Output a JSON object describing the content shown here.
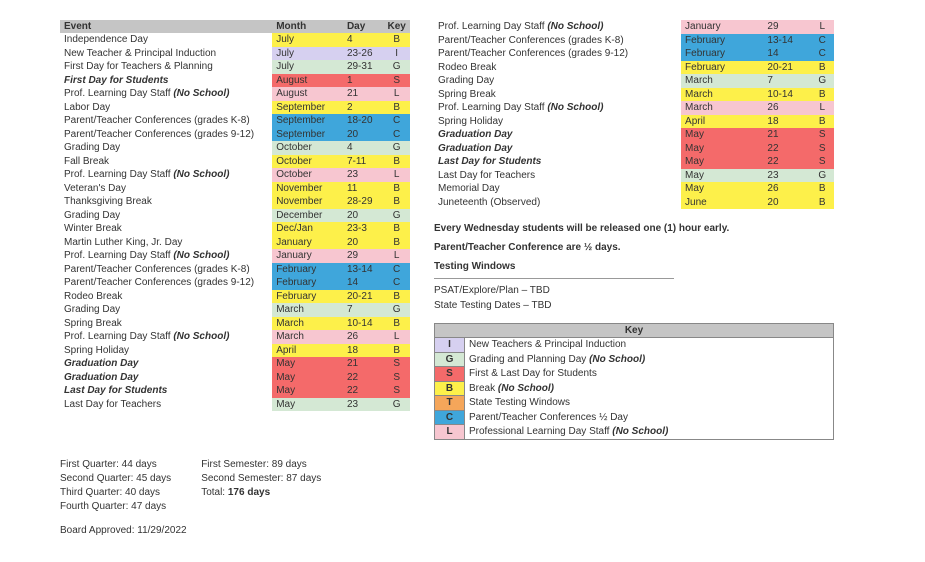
{
  "colors": {
    "headerBg": "#c5c5c5",
    "B": "#fdf04a",
    "I": "#d6d0f0",
    "G": "#d4e8d4",
    "S": "#f46a6a",
    "L": "#f7c6d0",
    "C": "#3fa6db",
    "T": "#f5a65a",
    "none": "transparent"
  },
  "headers": {
    "event": "Event",
    "month": "Month",
    "day": "Day",
    "key": "Key"
  },
  "events": [
    {
      "e": "Independence Day",
      "m": "July",
      "d": "4",
      "k": "B",
      "c": "B"
    },
    {
      "e": "New Teacher & Principal Induction",
      "m": "July",
      "d": "23-26",
      "k": "I",
      "c": "I"
    },
    {
      "e": "First Day for Teachers & Planning",
      "m": "July",
      "d": "29-31",
      "k": "G",
      "c": "G"
    },
    {
      "e": "First Day for Students",
      "m": "August",
      "d": "1",
      "k": "S",
      "c": "S",
      "bi": true
    },
    {
      "e": "Prof. Learning Day Staff <b><i>(No School)</i></b>",
      "m": "August",
      "d": "21",
      "k": "L",
      "c": "L"
    },
    {
      "e": "Labor Day",
      "m": "September",
      "d": "2",
      "k": "B",
      "c": "B"
    },
    {
      "e": "Parent/Teacher Conferences (grades K-8)",
      "m": "September",
      "d": "18-20",
      "k": "C",
      "c": "C"
    },
    {
      "e": "Parent/Teacher Conferences (grades 9-12)",
      "m": "September",
      "d": "20",
      "k": "C",
      "c": "C"
    },
    {
      "e": "Grading Day",
      "m": "October",
      "d": "4",
      "k": "G",
      "c": "G"
    },
    {
      "e": "Fall Break",
      "m": "October",
      "d": "7-11",
      "k": "B",
      "c": "B"
    },
    {
      "e": "Prof. Learning Day Staff <b><i>(No School)</i></b>",
      "m": "October",
      "d": "23",
      "k": "L",
      "c": "L"
    },
    {
      "e": "Veteran's Day",
      "m": "November",
      "d": "11",
      "k": "B",
      "c": "B"
    },
    {
      "e": "Thanksgiving Break",
      "m": "November",
      "d": "28-29",
      "k": "B",
      "c": "B"
    },
    {
      "e": "Grading Day",
      "m": "December",
      "d": "20",
      "k": "G",
      "c": "G"
    },
    {
      "e": "Winter Break",
      "m": "Dec/Jan",
      "d": "23-3",
      "k": "B",
      "c": "B"
    },
    {
      "e": "Martin Luther King, Jr. Day",
      "m": "January",
      "d": "20",
      "k": "B",
      "c": "B"
    },
    {
      "e": "Prof. Learning Day Staff <b><i>(No School)</i></b>",
      "m": "January",
      "d": "29",
      "k": "L",
      "c": "L"
    },
    {
      "e": "Parent/Teacher Conferences (grades K-8)",
      "m": "February",
      "d": "13-14",
      "k": "C",
      "c": "C"
    },
    {
      "e": "Parent/Teacher Conferences (grades 9-12)",
      "m": "February",
      "d": "14",
      "k": "C",
      "c": "C"
    },
    {
      "e": "Rodeo Break",
      "m": "February",
      "d": "20-21",
      "k": "B",
      "c": "B"
    },
    {
      "e": "Grading Day",
      "m": "March",
      "d": "7",
      "k": "G",
      "c": "G"
    },
    {
      "e": "Spring Break",
      "m": "March",
      "d": "10-14",
      "k": "B",
      "c": "B"
    },
    {
      "e": "Prof. Learning Day Staff <b><i>(No School)</i></b>",
      "m": "March",
      "d": "26",
      "k": "L",
      "c": "L"
    },
    {
      "e": "Spring Holiday",
      "m": "April",
      "d": "18",
      "k": "B",
      "c": "B"
    },
    {
      "e": "Graduation Day",
      "m": "May",
      "d": "21",
      "k": "S",
      "c": "S",
      "bi": true
    },
    {
      "e": "Graduation Day",
      "m": "May",
      "d": "22",
      "k": "S",
      "c": "S",
      "bi": true
    },
    {
      "e": "Last Day for Students",
      "m": "May",
      "d": "22",
      "k": "S",
      "c": "S",
      "bi": true
    },
    {
      "e": "Last Day for Teachers",
      "m": "May",
      "d": "23",
      "k": "G",
      "c": "G"
    }
  ],
  "eventsRight": [
    {
      "e": "Prof. Learning Day Staff <b><i>(No School)</i></b>",
      "m": "January",
      "d": "29",
      "k": "L",
      "c": "L"
    },
    {
      "e": "Parent/Teacher Conferences (grades K-8)",
      "m": "February",
      "d": "13-14",
      "k": "C",
      "c": "C"
    },
    {
      "e": "Parent/Teacher Conferences (grades 9-12)",
      "m": "February",
      "d": "14",
      "k": "C",
      "c": "C"
    },
    {
      "e": "Rodeo Break",
      "m": "February",
      "d": "20-21",
      "k": "B",
      "c": "B"
    },
    {
      "e": "Grading Day",
      "m": "March",
      "d": "7",
      "k": "G",
      "c": "G"
    },
    {
      "e": "Spring Break",
      "m": "March",
      "d": "10-14",
      "k": "B",
      "c": "B"
    },
    {
      "e": "Prof. Learning Day Staff <b><i>(No School)</i></b>",
      "m": "March",
      "d": "26",
      "k": "L",
      "c": "L"
    },
    {
      "e": "Spring Holiday",
      "m": "April",
      "d": "18",
      "k": "B",
      "c": "B"
    },
    {
      "e": "Graduation Day",
      "m": "May",
      "d": "21",
      "k": "S",
      "c": "S",
      "bi": true
    },
    {
      "e": "Graduation Day",
      "m": "May",
      "d": "22",
      "k": "S",
      "c": "S",
      "bi": true
    },
    {
      "e": "Last Day for Students",
      "m": "May",
      "d": "22",
      "k": "S",
      "c": "S",
      "bi": true
    },
    {
      "e": "Last Day for Teachers",
      "m": "May",
      "d": "23",
      "k": "G",
      "c": "G"
    },
    {
      "e": "Memorial Day",
      "m": "May",
      "d": "26",
      "k": "B",
      "c": "B"
    },
    {
      "e": "Juneteenth (Observed)",
      "m": "June",
      "d": "20",
      "k": "B",
      "c": "B"
    }
  ],
  "notes": {
    "wed": "Every Wednesday students will be released one (1) hour early.",
    "ptc": "Parent/Teacher Conference are ½ days.",
    "testingHdr": "Testing Windows",
    "testing1": "PSAT/Explore/Plan – TBD",
    "testing2": "State Testing Dates – TBD"
  },
  "keyTitle": "Key",
  "keyRows": [
    {
      "k": "I",
      "c": "I",
      "label": "New Teachers & Principal Induction"
    },
    {
      "k": "G",
      "c": "G",
      "label": "Grading and Planning Day <b><i>(No School)</i></b>"
    },
    {
      "k": "S",
      "c": "S",
      "label": "First & Last Day for Students"
    },
    {
      "k": "B",
      "c": "B",
      "label": "Break <b><i>(No School)</i></b>"
    },
    {
      "k": "T",
      "c": "T",
      "label": "State Testing Windows"
    },
    {
      "k": "C",
      "c": "C",
      "label": "Parent/Teacher Conferences ½ Day"
    },
    {
      "k": "L",
      "c": "L",
      "label": "Professional Learning Day Staff <b><i>(No School)</i></b>"
    }
  ],
  "footer": {
    "col1": [
      "First Quarter: 44 days",
      "Second Quarter: 45 days",
      "Third Quarter: 40 days",
      "Fourth Quarter: 47 days"
    ],
    "col2": [
      "First Semester: 89 days",
      "Second Semester: 87 days",
      "Total: <b>176 days</b>"
    ],
    "approved": "Board Approved: 11/29/2022"
  }
}
